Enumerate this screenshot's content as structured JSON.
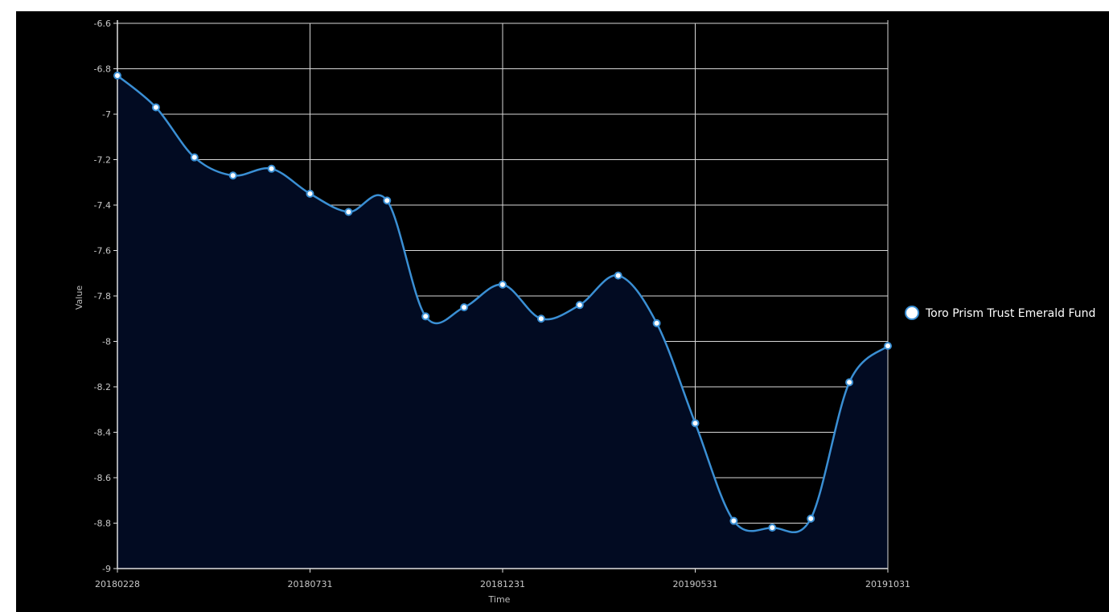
{
  "chart_data": {
    "type": "area",
    "xlabel": "Time",
    "ylabel": "Value",
    "ylim": [
      -9,
      -6.6
    ],
    "yticks": [
      -6.6,
      -6.8,
      -7,
      -7.2,
      -7.4,
      -7.6,
      -7.8,
      -8,
      -8.2,
      -8.4,
      -8.6,
      -8.8,
      -9
    ],
    "xtick_labels": [
      "20180228",
      "20180731",
      "20181231",
      "20190531",
      "20191031"
    ],
    "x": [
      "20180228",
      "20180331",
      "20180430",
      "20180531",
      "20180630",
      "20180731",
      "20180831",
      "20180930",
      "20181031",
      "20181130",
      "20181231",
      "20190131",
      "20190228",
      "20190331",
      "20190430",
      "20190531",
      "20190630",
      "20190731",
      "20190831",
      "20190930",
      "20191031"
    ],
    "series": [
      {
        "name": "Toro Prism Trust Emerald Fund",
        "values": [
          -6.83,
          -6.97,
          -7.19,
          -7.27,
          -7.24,
          -7.35,
          -7.43,
          -7.38,
          -7.89,
          -7.85,
          -7.75,
          -7.9,
          -7.84,
          -7.71,
          -7.92,
          -8.36,
          -8.79,
          -8.82,
          -8.78,
          -8.18,
          -8.02
        ]
      }
    ],
    "grid": true,
    "legend": "right",
    "colors": {
      "line": "#3a8fd4",
      "fill": "#020b22",
      "grid": "#d8d8d8",
      "background": "#000000",
      "marker_fill": "#ffffff"
    }
  }
}
